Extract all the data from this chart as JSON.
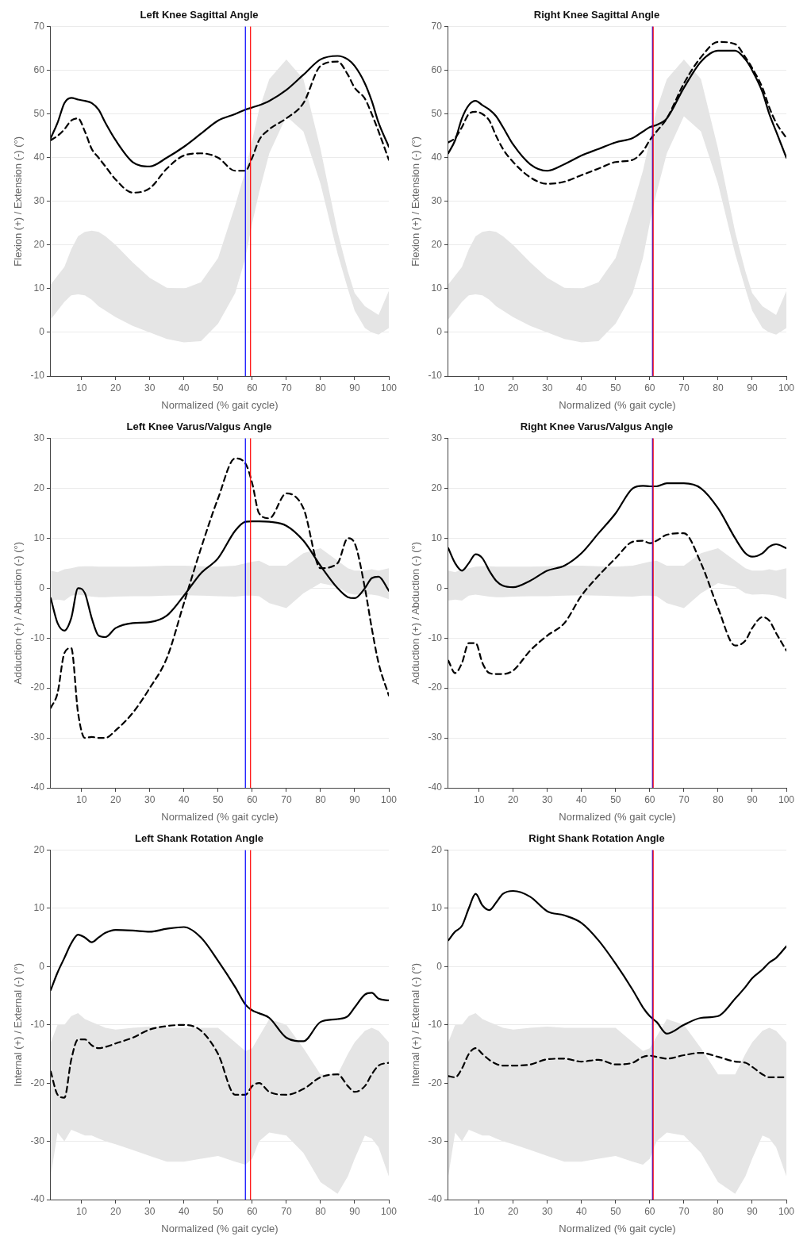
{
  "chart_data": [
    {
      "type": "line",
      "title": "Left Knee Sagittal Angle",
      "xlabel": "Normalized (% gait cycle)",
      "ylabel": "Flexion (+) / Extension (-) (°)",
      "xlim": [
        1,
        100
      ],
      "xticks": [
        10,
        20,
        30,
        40,
        50,
        60,
        70,
        80,
        90,
        100
      ],
      "ylim": [
        -10,
        70
      ],
      "yticks": [
        -10,
        0,
        10,
        20,
        30,
        40,
        50,
        60,
        70
      ],
      "grid": "y",
      "x": [
        1,
        3,
        5,
        7,
        9,
        11,
        13,
        15,
        17,
        20,
        25,
        30,
        35,
        40,
        45,
        50,
        55,
        58,
        60,
        62,
        65,
        70,
        75,
        80,
        85,
        88,
        90,
        93,
        95,
        97,
        100
      ],
      "ref_lines": [
        {
          "axis": "x",
          "value": 58,
          "color": "#0000ff"
        },
        {
          "axis": "x",
          "value": 59.5,
          "color": "#ff0000"
        }
      ],
      "series": [
        {
          "color": "#e5e5e5",
          "values": [
            null,
            null,
            null,
            null,
            null,
            null,
            null,
            null,
            null,
            null,
            null,
            null,
            null,
            null,
            null,
            null,
            null,
            null,
            null,
            null,
            null,
            null,
            null,
            null,
            null,
            null,
            null,
            null,
            null,
            null,
            null
          ],
          "upper": [
            11,
            13,
            15,
            19,
            22,
            23,
            23.3,
            23,
            22,
            20,
            16,
            12.5,
            10.2,
            10,
            11.5,
            17,
            29,
            37,
            44,
            51,
            58,
            62.5,
            58,
            42,
            23,
            14,
            9,
            6,
            5,
            4,
            9.5
          ],
          "lower": [
            3,
            5,
            7,
            8.5,
            8.7,
            8.5,
            7.5,
            6,
            5,
            3.5,
            1.5,
            0,
            -1.5,
            -2.3,
            -2,
            2,
            9,
            17,
            25,
            32,
            41,
            49.5,
            46,
            34,
            18,
            10,
            5,
            1,
            0,
            -0.5,
            1
          ]
        },
        {
          "color": "#000000",
          "line_style": "solid",
          "values": [
            44.5,
            48,
            52.5,
            53.7,
            53.3,
            53,
            52.5,
            51,
            48,
            44,
            39,
            38,
            40,
            42.5,
            45.5,
            48.5,
            50,
            51,
            51.5,
            52,
            53,
            55.5,
            59,
            62.5,
            63.3,
            62.5,
            61,
            57,
            53,
            48,
            42.5
          ]
        },
        {
          "color": "#000000",
          "line_style": "dashed",
          "values": [
            44,
            45,
            46.5,
            48.5,
            49,
            46,
            42,
            40,
            38,
            35,
            32,
            33,
            37.5,
            40.5,
            41,
            40,
            37,
            37,
            40,
            44,
            46.5,
            49,
            52.5,
            61,
            62,
            59,
            56,
            53.5,
            50,
            46,
            39.5
          ]
        }
      ]
    },
    {
      "type": "line",
      "title": "Right Knee Sagittal Angle",
      "xlabel": "Normalized (% gait cycle)",
      "ylabel": "Flexion (+) / Extension (-) (°)",
      "xlim": [
        1,
        100
      ],
      "xticks": [
        10,
        20,
        30,
        40,
        50,
        60,
        70,
        80,
        90,
        100
      ],
      "ylim": [
        -10,
        70
      ],
      "yticks": [
        -10,
        0,
        10,
        20,
        30,
        40,
        50,
        60,
        70
      ],
      "grid": "y",
      "x": [
        1,
        3,
        5,
        7,
        9,
        11,
        13,
        15,
        17,
        20,
        25,
        30,
        35,
        40,
        45,
        50,
        55,
        58,
        60,
        62,
        65,
        70,
        75,
        80,
        85,
        88,
        90,
        93,
        95,
        97,
        100
      ],
      "ref_lines": [
        {
          "axis": "x",
          "value": 60.8,
          "color": "#0000ff"
        },
        {
          "axis": "x",
          "value": 61,
          "color": "#ff0000"
        }
      ],
      "series": [
        {
          "color": "#e5e5e5",
          "values": [
            null,
            null,
            null,
            null,
            null,
            null,
            null,
            null,
            null,
            null,
            null,
            null,
            null,
            null,
            null,
            null,
            null,
            null,
            null,
            null,
            null,
            null,
            null,
            null,
            null,
            null,
            null,
            null,
            null,
            null,
            null
          ],
          "upper": [
            11,
            13,
            15,
            19,
            22,
            23,
            23.3,
            23,
            22,
            20,
            16,
            12.5,
            10.2,
            10,
            11.5,
            17,
            29,
            37,
            44,
            51,
            58,
            62.5,
            58,
            42,
            23,
            14,
            9,
            6,
            5,
            4,
            9.5
          ],
          "lower": [
            3,
            5,
            7,
            8.5,
            8.7,
            8.5,
            7.5,
            6,
            5,
            3.5,
            1.5,
            0,
            -1.5,
            -2.3,
            -2,
            2,
            9,
            17,
            25,
            32,
            41,
            49.5,
            46,
            34,
            18,
            10,
            5,
            1,
            0,
            -0.5,
            1
          ]
        },
        {
          "color": "#000000",
          "line_style": "solid",
          "values": [
            41,
            44,
            49,
            52,
            53,
            52,
            51,
            49.5,
            47,
            43,
            38.5,
            37,
            38.5,
            40.5,
            42,
            43.5,
            44.5,
            46,
            47,
            47.5,
            49,
            56,
            62,
            64.5,
            64.5,
            62.5,
            60,
            55,
            50,
            46,
            40
          ]
        },
        {
          "color": "#000000",
          "line_style": "dashed",
          "values": [
            43.5,
            44.5,
            47,
            50,
            50.5,
            50,
            48.5,
            45,
            42,
            39,
            35.5,
            34,
            34.5,
            36,
            37.5,
            39,
            39.5,
            41.5,
            44,
            46,
            49,
            57,
            63,
            66.5,
            66,
            63,
            60.5,
            56,
            51.5,
            48,
            44.5
          ]
        }
      ]
    },
    {
      "type": "line",
      "title": "Left Knee Varus/Valgus Angle",
      "xlabel": "Normalized (% gait cycle)",
      "ylabel": "Adduction (+) / Abduction (-) (°)",
      "xlim": [
        1,
        100
      ],
      "xticks": [
        10,
        20,
        30,
        40,
        50,
        60,
        70,
        80,
        90,
        100
      ],
      "ylim": [
        -40,
        30
      ],
      "yticks": [
        -40,
        -30,
        -20,
        -10,
        0,
        10,
        20,
        30
      ],
      "grid": "y",
      "x": [
        1,
        3,
        5,
        7,
        9,
        11,
        13,
        15,
        17,
        20,
        25,
        30,
        35,
        40,
        45,
        50,
        55,
        58,
        60,
        62,
        65,
        70,
        75,
        80,
        85,
        88,
        90,
        93,
        95,
        97,
        100
      ],
      "ref_lines": [
        {
          "axis": "x",
          "value": 58,
          "color": "#0000ff"
        },
        {
          "axis": "x",
          "value": 59.5,
          "color": "#ff0000"
        }
      ],
      "series": [
        {
          "color": "#e5e5e5",
          "values": [
            null,
            null,
            null,
            null,
            null,
            null,
            null,
            null,
            null,
            null,
            null,
            null,
            null,
            null,
            null,
            null,
            null,
            null,
            null,
            null,
            null,
            null,
            null,
            null,
            null,
            null,
            null,
            null,
            null,
            null,
            null
          ],
          "upper": [
            3.5,
            3.2,
            3.8,
            4,
            4.3,
            4.4,
            4.4,
            4.3,
            4.3,
            4.3,
            4.3,
            4.4,
            4.5,
            4.5,
            4.4,
            4.3,
            4.5,
            5,
            5.3,
            5.5,
            4.5,
            4.5,
            7,
            8,
            5.5,
            4,
            3.5,
            3.5,
            3.8,
            3.5,
            4
          ],
          "lower": [
            -2.5,
            -2.3,
            -2.5,
            -1.5,
            -1.3,
            -1.5,
            -1.7,
            -1.8,
            -1.8,
            -1.7,
            -1.6,
            -1.6,
            -1.5,
            -1.4,
            -1.5,
            -1.6,
            -1.7,
            -1.5,
            -1.5,
            -1.6,
            -3,
            -4,
            -1,
            1,
            0.3,
            -1,
            -1.3,
            -1.2,
            -1.3,
            -1.5,
            -2.2
          ]
        },
        {
          "color": "#000000",
          "line_style": "solid",
          "values": [
            -2,
            -7,
            -8.5,
            -6,
            0,
            -1,
            -6,
            -9.5,
            -9.8,
            -8,
            -7,
            -6.8,
            -5.5,
            -1.5,
            3,
            6,
            11.5,
            13.3,
            13.4,
            13.4,
            13.3,
            12.5,
            9.5,
            4.5,
            0,
            -1.8,
            -2,
            0,
            2,
            2.3,
            -0.5
          ]
        },
        {
          "color": "#000000",
          "line_style": "dashed",
          "values": [
            -24,
            -21,
            -13,
            -12,
            -25,
            -30,
            -29.8,
            -30,
            -30,
            -28.5,
            -25,
            -20,
            -14,
            -3,
            8,
            18,
            26,
            25,
            21,
            15,
            14,
            19,
            16,
            4,
            5,
            10,
            9,
            0,
            -8,
            -15,
            -21.5
          ]
        }
      ]
    },
    {
      "type": "line",
      "title": "Right Knee Varus/Valgus Angle",
      "xlabel": "Normalized (% gait cycle)",
      "ylabel": "Adduction (+) / Abduction (-) (°)",
      "xlim": [
        1,
        100
      ],
      "xticks": [
        10,
        20,
        30,
        40,
        50,
        60,
        70,
        80,
        90,
        100
      ],
      "ylim": [
        -40,
        30
      ],
      "yticks": [
        -40,
        -30,
        -20,
        -10,
        0,
        10,
        20,
        30
      ],
      "grid": "y",
      "x": [
        1,
        3,
        5,
        7,
        9,
        11,
        13,
        15,
        17,
        20,
        25,
        30,
        35,
        40,
        45,
        50,
        55,
        58,
        60,
        62,
        65,
        70,
        75,
        80,
        85,
        88,
        90,
        93,
        95,
        97,
        100
      ],
      "ref_lines": [
        {
          "axis": "x",
          "value": 60.8,
          "color": "#0000ff"
        },
        {
          "axis": "x",
          "value": 61,
          "color": "#ff0000"
        }
      ],
      "series": [
        {
          "color": "#e5e5e5",
          "values": [
            null,
            null,
            null,
            null,
            null,
            null,
            null,
            null,
            null,
            null,
            null,
            null,
            null,
            null,
            null,
            null,
            null,
            null,
            null,
            null,
            null,
            null,
            null,
            null,
            null,
            null,
            null,
            null,
            null,
            null,
            null
          ],
          "upper": [
            3.5,
            3.2,
            3.8,
            4,
            4.3,
            4.4,
            4.4,
            4.3,
            4.3,
            4.3,
            4.3,
            4.4,
            4.5,
            4.5,
            4.4,
            4.3,
            4.5,
            5,
            5.3,
            5.5,
            4.5,
            4.5,
            7,
            8,
            5.5,
            4,
            3.5,
            3.5,
            3.8,
            3.5,
            4
          ],
          "lower": [
            -2.5,
            -2.3,
            -2.5,
            -1.5,
            -1.3,
            -1.5,
            -1.7,
            -1.8,
            -1.8,
            -1.7,
            -1.6,
            -1.6,
            -1.5,
            -1.4,
            -1.5,
            -1.6,
            -1.7,
            -1.5,
            -1.5,
            -1.6,
            -3,
            -4,
            -1,
            1,
            0.3,
            -1,
            -1.3,
            -1.2,
            -1.3,
            -1.5,
            -2.2
          ]
        },
        {
          "color": "#000000",
          "line_style": "solid",
          "values": [
            8,
            5,
            3.5,
            5,
            6.8,
            6,
            3.5,
            1.5,
            0.5,
            0.2,
            1.5,
            3.5,
            4.5,
            7,
            11,
            15,
            20,
            20.5,
            20.4,
            20.4,
            21,
            21,
            20,
            16,
            10,
            7,
            6.3,
            7,
            8.3,
            8.8,
            8
          ]
        },
        {
          "color": "#000000",
          "line_style": "dashed",
          "values": [
            -14.5,
            -17,
            -15,
            -11,
            -11,
            -15,
            -17,
            -17.2,
            -17.2,
            -16.5,
            -12.5,
            -9.5,
            -7,
            -1.5,
            2.5,
            6,
            9.3,
            9.5,
            9,
            9.5,
            10.7,
            11,
            5,
            -4,
            -11.5,
            -10.5,
            -8,
            -5.8,
            -6.5,
            -9,
            -12.5
          ]
        }
      ]
    },
    {
      "type": "line",
      "title": "Left Shank Rotation Angle",
      "xlabel": "Normalized (% gait cycle)",
      "ylabel": "Internal (+) / External (-) (°)",
      "xlim": [
        1,
        100
      ],
      "xticks": [
        10,
        20,
        30,
        40,
        50,
        60,
        70,
        80,
        90,
        100
      ],
      "ylim": [
        -40,
        20
      ],
      "yticks": [
        -40,
        -30,
        -20,
        -10,
        0,
        10,
        20
      ],
      "grid": "y",
      "x": [
        1,
        3,
        5,
        7,
        9,
        11,
        13,
        15,
        17,
        20,
        25,
        30,
        35,
        40,
        45,
        50,
        55,
        58,
        60,
        62,
        65,
        70,
        75,
        80,
        85,
        88,
        90,
        93,
        95,
        97,
        100
      ],
      "ref_lines": [
        {
          "axis": "x",
          "value": 58,
          "color": "#0000ff"
        },
        {
          "axis": "x",
          "value": 59.5,
          "color": "#ff0000"
        }
      ],
      "series": [
        {
          "color": "#e5e5e5",
          "values": [
            null,
            null,
            null,
            null,
            null,
            null,
            null,
            null,
            null,
            null,
            null,
            null,
            null,
            null,
            null,
            null,
            null,
            null,
            null,
            null,
            null,
            null,
            null,
            null,
            null,
            null,
            null,
            null,
            null,
            null,
            null
          ],
          "upper": [
            -13,
            -10,
            -10,
            -8.5,
            -8,
            -9,
            -9.5,
            -10,
            -10.5,
            -10.8,
            -10.5,
            -10.3,
            -10.5,
            -10.5,
            -10.5,
            -10.5,
            -13,
            -14.5,
            -14,
            -12,
            -9,
            -10,
            -14,
            -18.5,
            -18.5,
            -15,
            -13,
            -11,
            -10.5,
            -11,
            -13
          ],
          "lower": [
            -36,
            -28.5,
            -30,
            -28,
            -28.5,
            -29,
            -29,
            -29.5,
            -30,
            -30.5,
            -31.5,
            -32.5,
            -33.5,
            -33.5,
            -33,
            -32.5,
            -33.5,
            -34,
            -33,
            -30,
            -28.5,
            -29,
            -32,
            -37,
            -39,
            -36,
            -33,
            -29,
            -29.5,
            -31,
            -36
          ]
        },
        {
          "color": "#000000",
          "line_style": "solid",
          "values": [
            -4,
            -1,
            1.5,
            4,
            5.5,
            5,
            4.2,
            5,
            5.8,
            6.3,
            6.2,
            6,
            6.5,
            6.8,
            5,
            1,
            -3.5,
            -6.5,
            -7.5,
            -8,
            -8.8,
            -12.2,
            -12.8,
            -9.5,
            -9,
            -8.5,
            -7,
            -4.8,
            -4.5,
            -5.5,
            -5.8
          ]
        },
        {
          "color": "#000000",
          "line_style": "dashed",
          "values": [
            -18,
            -22,
            -22.5,
            -16,
            -12.5,
            -12.5,
            -13.5,
            -14,
            -13.8,
            -13.2,
            -12.2,
            -10.8,
            -10.2,
            -10,
            -11,
            -15,
            -22,
            -22,
            -20.5,
            -20,
            -21.5,
            -22,
            -21,
            -19,
            -18.5,
            -20.5,
            -21.5,
            -20.5,
            -18.5,
            -17,
            -16.5
          ]
        }
      ]
    },
    {
      "type": "line",
      "title": "Right Shank Rotation Angle",
      "xlabel": "Normalized (% gait cycle)",
      "ylabel": "Internal (+) / External (-) (°)",
      "xlim": [
        1,
        100
      ],
      "xticks": [
        10,
        20,
        30,
        40,
        50,
        60,
        70,
        80,
        90,
        100
      ],
      "ylim": [
        -40,
        20
      ],
      "yticks": [
        -40,
        -30,
        -20,
        -10,
        0,
        10,
        20
      ],
      "grid": "y",
      "x": [
        1,
        3,
        5,
        7,
        9,
        11,
        13,
        15,
        17,
        20,
        25,
        30,
        35,
        40,
        45,
        50,
        55,
        58,
        60,
        62,
        65,
        70,
        75,
        80,
        85,
        88,
        90,
        93,
        95,
        97,
        100
      ],
      "ref_lines": [
        {
          "axis": "x",
          "value": 60.8,
          "color": "#0000ff"
        },
        {
          "axis": "x",
          "value": 61,
          "color": "#ff0000"
        }
      ],
      "series": [
        {
          "color": "#e5e5e5",
          "values": [
            null,
            null,
            null,
            null,
            null,
            null,
            null,
            null,
            null,
            null,
            null,
            null,
            null,
            null,
            null,
            null,
            null,
            null,
            null,
            null,
            null,
            null,
            null,
            null,
            null,
            null,
            null,
            null,
            null,
            null,
            null
          ],
          "upper": [
            -13,
            -10,
            -10,
            -8.5,
            -8,
            -9,
            -9.5,
            -10,
            -10.5,
            -10.8,
            -10.5,
            -10.3,
            -10.5,
            -10.5,
            -10.5,
            -10.5,
            -13,
            -14.5,
            -14,
            -12,
            -9,
            -10,
            -14,
            -18.5,
            -18.5,
            -15,
            -13,
            -11,
            -10.5,
            -11,
            -13
          ],
          "lower": [
            -36,
            -28.5,
            -30,
            -28,
            -28.5,
            -29,
            -29,
            -29.5,
            -30,
            -30.5,
            -31.5,
            -32.5,
            -33.5,
            -33.5,
            -33,
            -32.5,
            -33.5,
            -34,
            -33,
            -30,
            -28.5,
            -29,
            -32,
            -37,
            -39,
            -36,
            -33,
            -29,
            -29.5,
            -31,
            -36
          ]
        },
        {
          "color": "#000000",
          "line_style": "solid",
          "values": [
            4.5,
            6,
            7,
            10,
            12.5,
            10.5,
            9.7,
            11,
            12.5,
            13,
            12,
            9.5,
            8.8,
            7.5,
            4.5,
            0.5,
            -4,
            -7,
            -8.5,
            -9.5,
            -11.5,
            -10,
            -8.8,
            -8.5,
            -5.5,
            -3.5,
            -2,
            -0.5,
            0.7,
            1.5,
            3.5
          ]
        },
        {
          "color": "#000000",
          "line_style": "dashed",
          "values": [
            -18.8,
            -19,
            -17.5,
            -15,
            -14,
            -15,
            -16,
            -16.7,
            -17,
            -17,
            -16.8,
            -15.9,
            -15.8,
            -16.3,
            -16,
            -16.8,
            -16.5,
            -15.5,
            -15.3,
            -15.5,
            -15.8,
            -15.2,
            -14.8,
            -15.5,
            -16.3,
            -16.5,
            -17.2,
            -18.5,
            -19,
            -19,
            -19
          ]
        }
      ]
    }
  ]
}
